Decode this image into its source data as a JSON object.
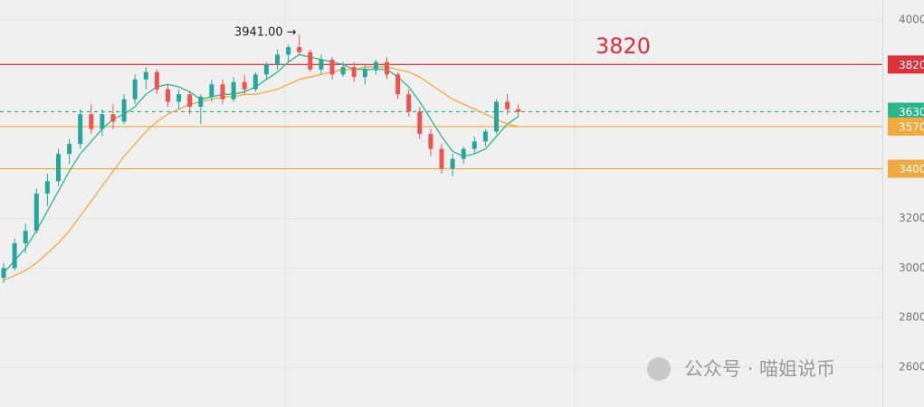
{
  "chart_data": {
    "type": "candlestick",
    "ohlc": [
      [
        2960,
        3020,
        2940,
        3000
      ],
      [
        3000,
        3120,
        2990,
        3100
      ],
      [
        3100,
        3180,
        3060,
        3150
      ],
      [
        3150,
        3320,
        3140,
        3300
      ],
      [
        3300,
        3380,
        3250,
        3350
      ],
      [
        3350,
        3480,
        3330,
        3460
      ],
      [
        3460,
        3520,
        3420,
        3500
      ],
      [
        3500,
        3640,
        3480,
        3620
      ],
      [
        3620,
        3660,
        3540,
        3560
      ],
      [
        3560,
        3640,
        3530,
        3620
      ],
      [
        3620,
        3660,
        3560,
        3590
      ],
      [
        3590,
        3700,
        3580,
        3680
      ],
      [
        3680,
        3780,
        3660,
        3760
      ],
      [
        3760,
        3810,
        3720,
        3790
      ],
      [
        3790,
        3800,
        3700,
        3720
      ],
      [
        3720,
        3740,
        3650,
        3670
      ],
      [
        3670,
        3720,
        3640,
        3700
      ],
      [
        3700,
        3710,
        3620,
        3650
      ],
      [
        3650,
        3700,
        3580,
        3690
      ],
      [
        3690,
        3760,
        3670,
        3740
      ],
      [
        3740,
        3760,
        3660,
        3680
      ],
      [
        3680,
        3770,
        3670,
        3750
      ],
      [
        3750,
        3780,
        3700,
        3720
      ],
      [
        3720,
        3790,
        3710,
        3780
      ],
      [
        3780,
        3830,
        3760,
        3820
      ],
      [
        3820,
        3880,
        3800,
        3860
      ],
      [
        3860,
        3900,
        3830,
        3890
      ],
      [
        3890,
        3941,
        3860,
        3870
      ],
      [
        3870,
        3880,
        3790,
        3800
      ],
      [
        3800,
        3860,
        3780,
        3840
      ],
      [
        3840,
        3850,
        3760,
        3780
      ],
      [
        3780,
        3830,
        3770,
        3810
      ],
      [
        3810,
        3830,
        3750,
        3770
      ],
      [
        3770,
        3820,
        3740,
        3800
      ],
      [
        3800,
        3840,
        3780,
        3830
      ],
      [
        3830,
        3850,
        3760,
        3780
      ],
      [
        3780,
        3790,
        3680,
        3700
      ],
      [
        3700,
        3720,
        3610,
        3630
      ],
      [
        3630,
        3650,
        3520,
        3540
      ],
      [
        3540,
        3560,
        3450,
        3480
      ],
      [
        3480,
        3500,
        3380,
        3400
      ],
      [
        3400,
        3460,
        3370,
        3440
      ],
      [
        3440,
        3490,
        3420,
        3480
      ],
      [
        3480,
        3530,
        3460,
        3510
      ],
      [
        3510,
        3560,
        3490,
        3550
      ],
      [
        3550,
        3680,
        3540,
        3670
      ],
      [
        3670,
        3700,
        3620,
        3640
      ],
      [
        3640,
        3660,
        3610,
        3630
      ]
    ],
    "up_color": "#26a69a",
    "down_color": "#ef5350",
    "series": [
      {
        "color": "#2bb58a",
        "values": [
          2980,
          3030,
          3080,
          3150,
          3230,
          3310,
          3390,
          3460,
          3510,
          3560,
          3600,
          3620,
          3650,
          3700,
          3730,
          3740,
          3730,
          3710,
          3680,
          3690,
          3700,
          3700,
          3710,
          3730,
          3760,
          3790,
          3830,
          3860,
          3850,
          3840,
          3830,
          3820,
          3800,
          3800,
          3800,
          3800,
          3770,
          3730,
          3670,
          3600,
          3530,
          3470,
          3450,
          3460,
          3480,
          3530,
          3580,
          3610
        ]
      },
      {
        "color": "#f2a93b",
        "values": [
          2950,
          2970,
          2990,
          3020,
          3060,
          3100,
          3150,
          3210,
          3270,
          3330,
          3390,
          3450,
          3500,
          3550,
          3590,
          3620,
          3640,
          3660,
          3670,
          3680,
          3690,
          3690,
          3700,
          3700,
          3710,
          3720,
          3740,
          3760,
          3770,
          3780,
          3790,
          3800,
          3800,
          3810,
          3810,
          3810,
          3800,
          3790,
          3770,
          3740,
          3710,
          3680,
          3660,
          3640,
          3620,
          3600,
          3580,
          3570
        ]
      }
    ],
    "ylim": [
      2440,
      4080
    ],
    "yticks": [
      2600,
      2800,
      3000,
      3200,
      4000
    ],
    "levels": [
      {
        "value": 3820,
        "label": "3820",
        "color": "#e0303a",
        "style": "solid"
      },
      {
        "value": 3630,
        "label": "3630",
        "color": "#2bb58a",
        "style": "dashed"
      },
      {
        "value": 3570,
        "label": "3570",
        "color": "#f2a93b",
        "style": "solid"
      },
      {
        "value": 3400,
        "label": "3400",
        "color": "#f2a93b",
        "style": "solid"
      }
    ],
    "annotations": [
      {
        "text": "3941.00",
        "value": 3941,
        "index": 27
      },
      {
        "text": "3820",
        "value": 3820
      }
    ],
    "watermark": "公众号 · 喵姐说币",
    "grid": true
  }
}
